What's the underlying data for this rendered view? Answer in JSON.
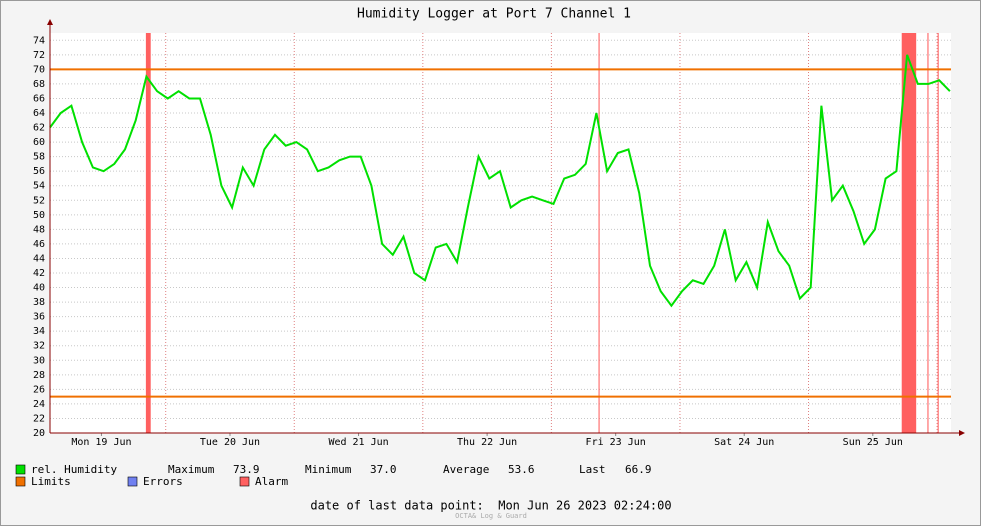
{
  "chart_data": {
    "type": "line",
    "title": "Humidity Logger at Port 7 Channel 1",
    "x": [
      0,
      2,
      4,
      6,
      8,
      10,
      12,
      14,
      16,
      18,
      20,
      22,
      24,
      26,
      28,
      30,
      32,
      34,
      36,
      38,
      40,
      42,
      44,
      46,
      48,
      50,
      52,
      54,
      56,
      58,
      60,
      62,
      64,
      66,
      68,
      70,
      72,
      74,
      76,
      78,
      80,
      82,
      84,
      86,
      88,
      90,
      92,
      94,
      96,
      98,
      100,
      102,
      104,
      106,
      108,
      110,
      112,
      114,
      116,
      118,
      120,
      122,
      124,
      126,
      128,
      130,
      132,
      134,
      136,
      138,
      140,
      142,
      144,
      146,
      148,
      150,
      152,
      154,
      156,
      158,
      160,
      162,
      164,
      166,
      168
    ],
    "series": [
      {
        "name": "rel. Humidity",
        "color": "#00e000",
        "values": [
          62,
          64,
          65,
          60,
          56.5,
          56,
          57,
          59,
          63,
          69,
          67,
          66,
          67,
          66,
          66,
          61,
          54,
          51,
          56.5,
          54,
          59,
          61,
          59.5,
          60,
          59,
          56,
          56.5,
          57.5,
          58,
          58,
          54,
          46,
          44.5,
          47,
          42,
          41,
          45.5,
          46,
          43.5,
          51,
          58,
          55,
          56,
          51,
          52,
          52.5,
          52,
          51.5,
          55,
          55.5,
          57,
          64,
          56,
          58.5,
          59,
          53,
          43,
          39.5,
          37.5,
          39.5,
          41,
          40.5,
          43,
          48,
          41,
          43.5,
          40,
          49,
          45,
          43,
          38.5,
          40,
          65,
          52,
          54,
          50.5,
          46,
          48,
          55,
          56,
          72,
          68,
          68,
          68.5,
          67
        ]
      }
    ],
    "limits": {
      "name": "Limits",
      "color": "#f07000",
      "values": [
        70,
        25
      ]
    },
    "errors": {
      "name": "Errors",
      "color": "#7080f0"
    },
    "alarm": {
      "name": "Alarm",
      "color": "#ff6060",
      "periods": [
        [
          17.9,
          18.8
        ],
        [
          102.4,
          102.6
        ],
        [
          159,
          161.7
        ],
        [
          163.8,
          164
        ],
        [
          165.7,
          165.9
        ]
      ]
    },
    "xlim": [
      0,
      168.2
    ],
    "xticks": [
      {
        "value": 9.6,
        "label": "Mon 19 Jun"
      },
      {
        "value": 33.6,
        "label": "Tue 20 Jun"
      },
      {
        "value": 57.6,
        "label": "Wed 21 Jun"
      },
      {
        "value": 81.6,
        "label": "Thu 22 Jun"
      },
      {
        "value": 105.6,
        "label": "Fri 23 Jun"
      },
      {
        "value": 129.6,
        "label": "Sat 24 Jun"
      },
      {
        "value": 153.6,
        "label": "Sun 25 Jun"
      }
    ],
    "xgrid": [
      21.6,
      45.6,
      69.6,
      93.6,
      117.6,
      141.6,
      165.6
    ],
    "ylim": [
      20,
      75
    ],
    "yticks": [
      20,
      22,
      24,
      26,
      28,
      30,
      32,
      34,
      36,
      38,
      40,
      42,
      44,
      46,
      48,
      50,
      52,
      54,
      56,
      58,
      60,
      62,
      64,
      66,
      68,
      70,
      72,
      74
    ],
    "stats": [
      {
        "label": "Maximum",
        "value": 73.9
      },
      {
        "label": "Minimum",
        "value": 37.0
      },
      {
        "label": "Average",
        "value": 53.6
      },
      {
        "label": "Last",
        "value": 66.9
      }
    ],
    "footer": "date of last data point:  Mon Jun 26 2023 02:24:00",
    "watermark": "OCTA& Log & Guard"
  }
}
